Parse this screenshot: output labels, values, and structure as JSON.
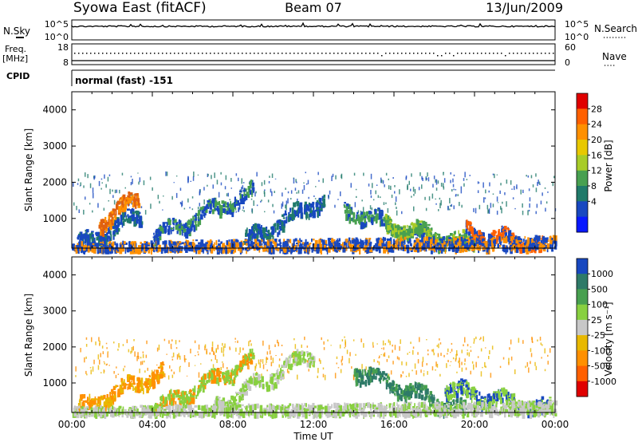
{
  "header": {
    "station": "Syowa East (fitACF)",
    "beam": "Beam 07",
    "date": "13/Jun/2009"
  },
  "top_panels": {
    "nsky_label": "N.Sky",
    "nsky_ticks": [
      "10^5",
      "10^0"
    ],
    "nsky_ticks_right": [
      "10^5",
      "10^0"
    ],
    "nsearch_label": "N.Search",
    "freq_label_1": "Freq.",
    "freq_label_2": "[MHz]",
    "freq_ticks": [
      "18",
      "8"
    ],
    "nave_ticks": [
      "60",
      "0"
    ],
    "nave_label": "Nave",
    "cpid_label": "CPID",
    "cpid_value": "normal (fast) -151"
  },
  "chart_data": [
    {
      "type": "heatmap",
      "name": "power",
      "ylabel": "Slant Range [km]",
      "xlabel": "Time UT",
      "x_ticks": [
        "00:00",
        "04:00",
        "08:00",
        "12:00",
        "16:00",
        "20:00",
        "00:00"
      ],
      "x_range_hours": [
        0,
        24
      ],
      "y_ticks": [
        1000,
        2000,
        3000,
        4000
      ],
      "ylim": [
        180,
        4500
      ],
      "colorbar_label": "Power [dB]",
      "colorbar_ticks": [
        "28",
        "24",
        "20",
        "16",
        "12",
        "8",
        "4"
      ],
      "colorbar_colors": [
        "#e00000",
        "#ff6000",
        "#ff9000",
        "#e8c800",
        "#a8cc28",
        "#48a050",
        "#207a6a",
        "#1848c0",
        "#0818ff"
      ],
      "bands": [
        {
          "t0": 0.2,
          "t1": 3.4,
          "r0": 280,
          "r1": 1150,
          "dr": 0.12,
          "color": "#1848c0",
          "alt": "#207a6a"
        },
        {
          "t0": 1.3,
          "t1": 3.3,
          "r0": 900,
          "r1": 1650,
          "dr": 0.06,
          "color": "#e06010",
          "alt": "#ff9000"
        },
        {
          "t0": 4.0,
          "t1": 9.0,
          "r0": 500,
          "r1": 1800,
          "dr": 0.1,
          "color": "#1848c0",
          "alt": "#48a050"
        },
        {
          "t0": 8.5,
          "t1": 12.5,
          "r0": 400,
          "r1": 1600,
          "dr": 0.12,
          "color": "#1848c0",
          "alt": "#207a6a"
        },
        {
          "t0": 13.5,
          "t1": 18.5,
          "r0": 1300,
          "r1": 350,
          "dr": 0.05,
          "color": "#48a050",
          "alt": "#1848c0"
        },
        {
          "t0": 15.5,
          "t1": 20.0,
          "r0": 900,
          "r1": 300,
          "dr": 0.06,
          "color": "#48a050",
          "alt": "#a8cc28"
        },
        {
          "t0": 19.5,
          "t1": 23.5,
          "r0": 700,
          "r1": 250,
          "dr": 0.12,
          "color": "#ff6000",
          "alt": "#1848c0"
        },
        {
          "t0": 0.0,
          "t1": 24.0,
          "r0": 200,
          "r1": 380,
          "dr": 0.0,
          "color": "#1848c0",
          "alt": "#ff9000"
        }
      ]
    },
    {
      "type": "heatmap",
      "name": "velocity",
      "ylabel": "Slant Range [km]",
      "xlabel": "Time UT",
      "x_ticks": [
        "00:00",
        "04:00",
        "08:00",
        "12:00",
        "16:00",
        "20:00",
        "00:00"
      ],
      "x_range_hours": [
        0,
        24
      ],
      "y_ticks": [
        1000,
        2000,
        3000,
        4000
      ],
      "ylim": [
        180,
        4500
      ],
      "colorbar_label": "Velocity [m s⁻¹]",
      "colorbar_ticks": [
        "1000",
        "500",
        "100",
        "25",
        "-25",
        "-100",
        "-500",
        "-1000"
      ],
      "colorbar_colors": [
        "#1848c0",
        "#2e7a68",
        "#48a050",
        "#88d040",
        "#c8c8c8",
        "#e8b800",
        "#ff9000",
        "#ff6000",
        "#e00000"
      ],
      "bands": [
        {
          "t0": 0.3,
          "t1": 4.5,
          "r0": 350,
          "r1": 1350,
          "dr": 0.15,
          "color": "#ff9000",
          "alt": "#e8b800"
        },
        {
          "t0": 4.0,
          "t1": 9.0,
          "r0": 300,
          "r1": 1700,
          "dr": 0.12,
          "color": "#88d040",
          "alt": "#ff9000"
        },
        {
          "t0": 7.0,
          "t1": 12.0,
          "r0": 350,
          "r1": 1900,
          "dr": 0.1,
          "color": "#88d040",
          "alt": "#c8c8c8"
        },
        {
          "t0": 14.0,
          "t1": 19.5,
          "r0": 1400,
          "r1": 250,
          "dr": 0.05,
          "color": "#2e7a68",
          "alt": "#48a050"
        },
        {
          "t0": 18.5,
          "t1": 23.8,
          "r0": 900,
          "r1": 300,
          "dr": 0.1,
          "color": "#88d040",
          "alt": "#1848c0"
        },
        {
          "t0": 0.0,
          "t1": 24.0,
          "r0": 200,
          "r1": 350,
          "dr": 0.0,
          "color": "#c8c8c8",
          "alt": "#88d040"
        }
      ]
    }
  ]
}
